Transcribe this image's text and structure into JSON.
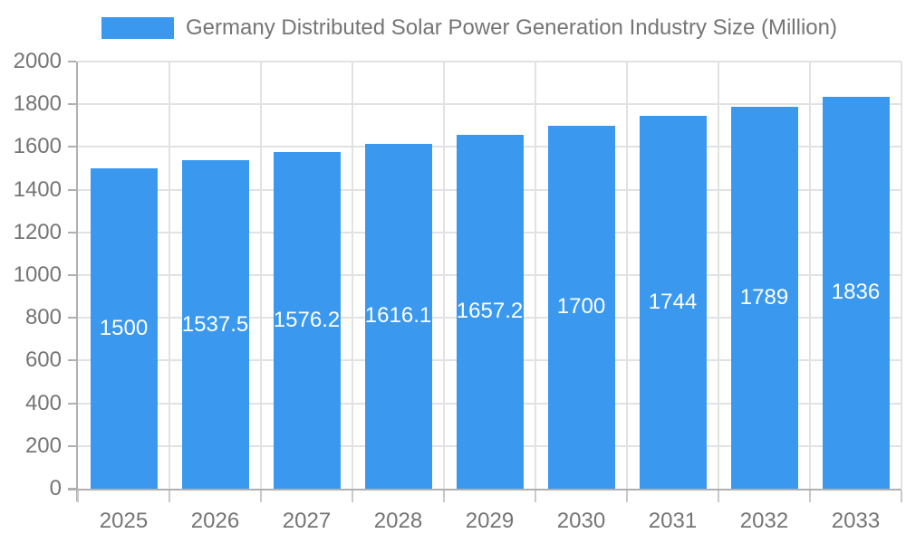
{
  "chart_data": {
    "type": "bar",
    "title": "Germany Distributed Solar Power Generation Industry Size (Million)",
    "legend": {
      "label": "Germany Distributed Solar Power Generation Industry Size (Million)",
      "position": "top-center"
    },
    "categories": [
      "2025",
      "2026",
      "2027",
      "2028",
      "2029",
      "2030",
      "2031",
      "2032",
      "2033"
    ],
    "series": [
      {
        "name": "Germany Distributed Solar Power Generation Industry Size (Million)",
        "values": [
          1500,
          1537.5,
          1576.2,
          1616.1,
          1657.2,
          1700,
          1744,
          1789,
          1836
        ],
        "value_labels": [
          "1500",
          "1537.5",
          "1576.2",
          "1616.1",
          "1657.2",
          "1700",
          "1744",
          "1789",
          "1836"
        ]
      }
    ],
    "xlabel": "",
    "ylabel": "",
    "ylim": [
      0,
      2000
    ],
    "yticks": [
      0,
      200,
      400,
      600,
      800,
      1000,
      1200,
      1400,
      1600,
      1800,
      2000
    ],
    "grid": true,
    "colors": {
      "bar": "#3A99EE",
      "grid": "#E2E2E2",
      "axis": "#B0B0B0",
      "tick": "#C9C9C9",
      "text": "#757575",
      "bar_label": "#FFFFFF",
      "background": "#FFFFFF"
    }
  }
}
